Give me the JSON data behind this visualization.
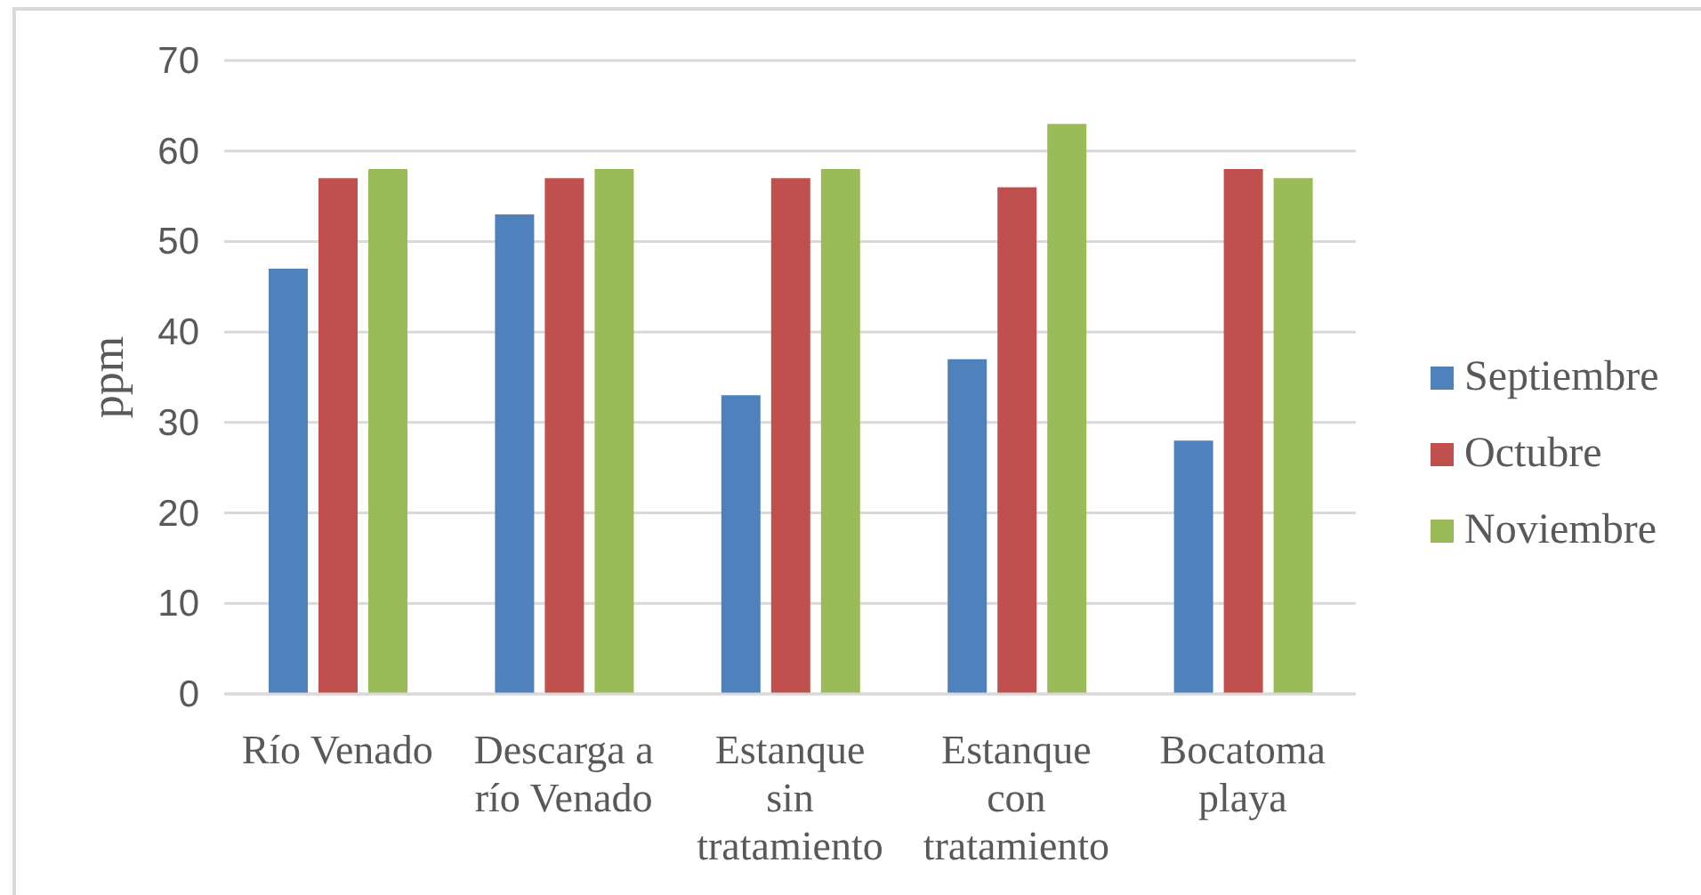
{
  "chart_data": {
    "type": "bar",
    "ylabel": "ppm",
    "categories": [
      "Río Venado",
      "Descarga a río Venado",
      "Estanque sin tratamiento",
      "Estanque con tratamiento",
      "Bocatoma playa"
    ],
    "series": [
      {
        "name": "Septiembre",
        "color": "#4f81bd",
        "values": [
          47,
          53,
          33,
          37,
          28
        ]
      },
      {
        "name": "Octubre",
        "color": "#c0504d",
        "values": [
          57,
          57,
          57,
          56,
          58
        ]
      },
      {
        "name": "Noviembre",
        "color": "#9bbb59",
        "values": [
          58,
          58,
          58,
          63,
          57
        ]
      }
    ],
    "ylim": [
      0,
      70
    ],
    "yticks": [
      0,
      10,
      20,
      30,
      40,
      50,
      60,
      70
    ],
    "grid": "y",
    "legend": "right"
  }
}
